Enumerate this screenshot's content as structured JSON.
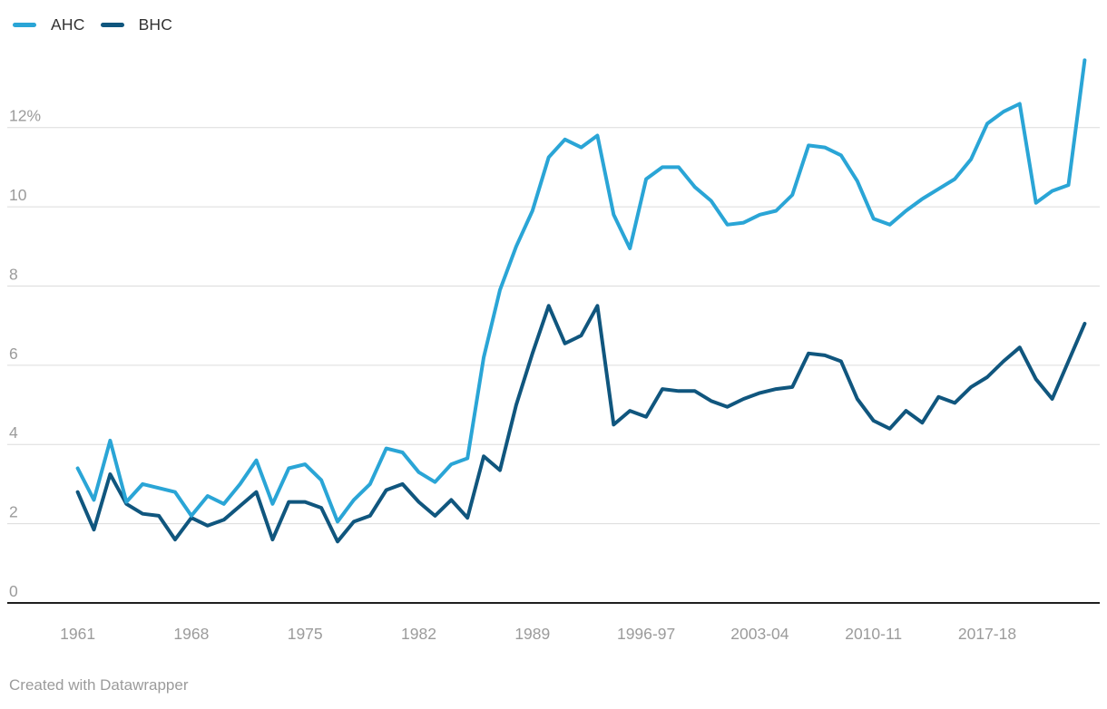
{
  "legend": {
    "items": [
      {
        "label": "AHC",
        "color": "#2aa5d6"
      },
      {
        "label": "BHC",
        "color": "#10567e"
      }
    ]
  },
  "footer": {
    "text": "Created with Datawrapper"
  },
  "chart_data": {
    "type": "line",
    "title": "",
    "xlabel": "",
    "ylabel": "",
    "ylim": [
      0,
      14
    ],
    "grid": true,
    "legend_position": "top-left",
    "y_ticks": [
      {
        "label": "12%",
        "value": 12
      },
      {
        "label": "10",
        "value": 10
      },
      {
        "label": "8",
        "value": 8
      },
      {
        "label": "6",
        "value": 6
      },
      {
        "label": "4",
        "value": 4
      },
      {
        "label": "2",
        "value": 2
      },
      {
        "label": "0",
        "value": 0
      }
    ],
    "x_ticks": [
      {
        "label": "1961",
        "index": 0
      },
      {
        "label": "1968",
        "index": 7
      },
      {
        "label": "1975",
        "index": 14
      },
      {
        "label": "1982",
        "index": 21
      },
      {
        "label": "1989",
        "index": 28
      },
      {
        "label": "1996-97",
        "index": 35
      },
      {
        "label": "2003-04",
        "index": 42
      },
      {
        "label": "2010-11",
        "index": 49
      },
      {
        "label": "2017-18",
        "index": 56
      }
    ],
    "categories": [
      "1961",
      "1962",
      "1963",
      "1964",
      "1965",
      "1966",
      "1967",
      "1968",
      "1969",
      "1970",
      "1971",
      "1972",
      "1973",
      "1974",
      "1975",
      "1976",
      "1977",
      "1978",
      "1979",
      "1980",
      "1981",
      "1982",
      "1983",
      "1984",
      "1985",
      "1986",
      "1987",
      "1988",
      "1989",
      "1990",
      "1991",
      "1992",
      "1993-94",
      "1994-95",
      "1995-96",
      "1996-97",
      "1997-98",
      "1998-99",
      "1999-00",
      "2000-01",
      "2001-02",
      "2002-03",
      "2003-04",
      "2004-05",
      "2005-06",
      "2006-07",
      "2007-08",
      "2008-09",
      "2009-10",
      "2010-11",
      "2011-12",
      "2012-13",
      "2013-14",
      "2014-15",
      "2015-16",
      "2016-17",
      "2017-18",
      "2018-19",
      "2019-20",
      "2020-21",
      "2021-22",
      "2022-23",
      "2023-24"
    ],
    "series": [
      {
        "name": "AHC",
        "color": "#2aa5d6",
        "values": [
          3.4,
          2.6,
          4.1,
          2.55,
          3.0,
          2.9,
          2.8,
          2.2,
          2.7,
          2.5,
          3.0,
          3.6,
          2.5,
          3.4,
          3.5,
          3.1,
          2.05,
          2.6,
          3.0,
          3.9,
          3.8,
          3.3,
          3.05,
          3.5,
          3.65,
          6.2,
          7.9,
          9.0,
          9.9,
          11.25,
          11.7,
          11.5,
          11.8,
          9.8,
          8.95,
          10.7,
          11.0,
          11.0,
          10.5,
          10.15,
          9.55,
          9.6,
          9.8,
          9.9,
          10.3,
          11.55,
          11.5,
          11.3,
          10.65,
          9.7,
          9.55,
          9.9,
          10.2,
          10.45,
          10.7,
          11.2,
          12.1,
          12.4,
          12.6,
          10.1,
          10.4,
          10.55,
          13.7
        ]
      },
      {
        "name": "BHC",
        "color": "#10567e",
        "values": [
          2.8,
          1.85,
          3.25,
          2.5,
          2.25,
          2.2,
          1.6,
          2.15,
          1.95,
          2.1,
          2.45,
          2.8,
          1.6,
          2.55,
          2.55,
          2.4,
          1.55,
          2.05,
          2.2,
          2.85,
          3.0,
          2.55,
          2.2,
          2.6,
          2.15,
          3.7,
          3.35,
          5.0,
          6.3,
          7.5,
          6.55,
          6.75,
          7.5,
          4.5,
          4.85,
          4.7,
          5.4,
          5.35,
          5.35,
          5.1,
          4.95,
          5.15,
          5.3,
          5.4,
          5.45,
          6.3,
          6.25,
          6.1,
          5.15,
          4.6,
          4.4,
          4.85,
          4.55,
          5.2,
          5.05,
          5.45,
          5.7,
          6.1,
          6.45,
          5.65,
          5.15,
          6.1,
          7.05
        ]
      }
    ]
  }
}
